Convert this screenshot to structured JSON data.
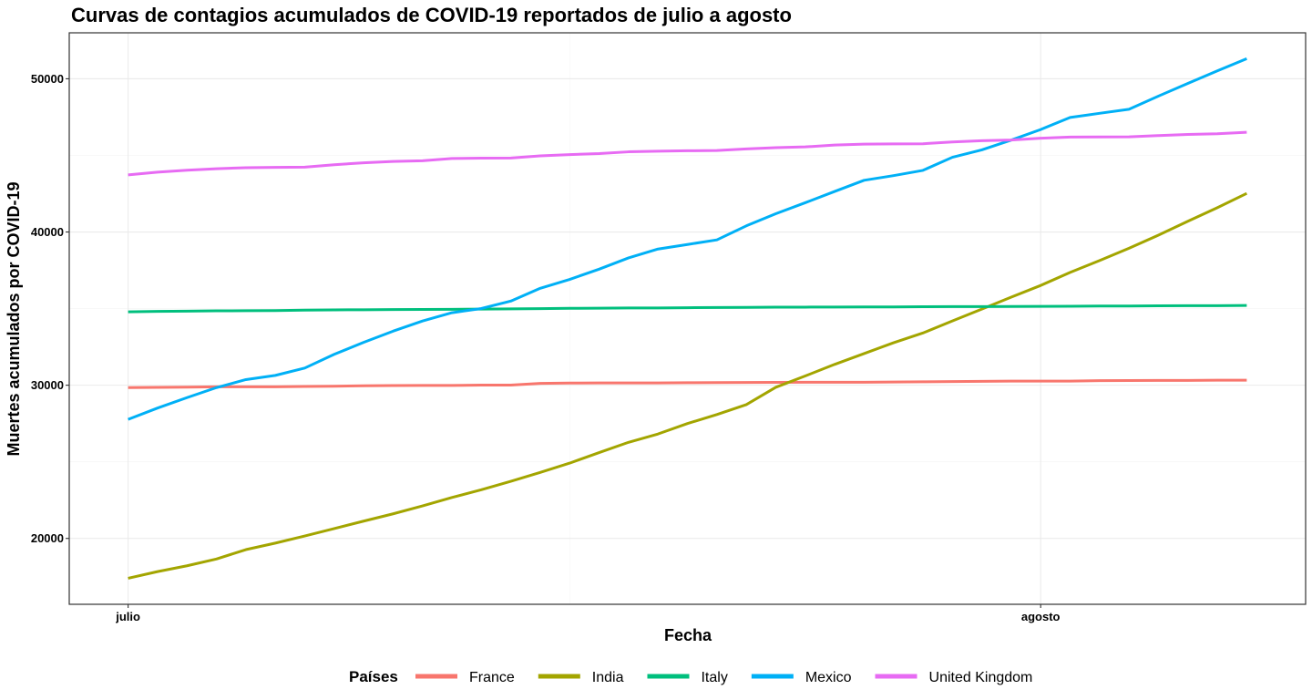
{
  "chart_data": {
    "type": "line",
    "title": "Curvas de contagios acumulados de COVID-19 reportados de julio a agosto",
    "xlabel": "Fecha",
    "ylabel": "Muertes acumulados por COVID-19",
    "x": [
      "2020-07-01",
      "2020-07-02",
      "2020-07-03",
      "2020-07-04",
      "2020-07-05",
      "2020-07-06",
      "2020-07-07",
      "2020-07-08",
      "2020-07-09",
      "2020-07-10",
      "2020-07-11",
      "2020-07-12",
      "2020-07-13",
      "2020-07-14",
      "2020-07-15",
      "2020-07-16",
      "2020-07-17",
      "2020-07-18",
      "2020-07-19",
      "2020-07-20",
      "2020-07-21",
      "2020-07-22",
      "2020-07-23",
      "2020-07-24",
      "2020-07-25",
      "2020-07-26",
      "2020-07-27",
      "2020-07-28",
      "2020-07-29",
      "2020-07-30",
      "2020-07-31",
      "2020-08-01",
      "2020-08-02",
      "2020-08-03",
      "2020-08-04",
      "2020-08-05",
      "2020-08-06",
      "2020-08-07",
      "2020-08-08"
    ],
    "x_ticks": [
      {
        "date": "2020-07-01",
        "label": "julio"
      },
      {
        "date": "2020-08-01",
        "label": "agosto"
      }
    ],
    "x_minor_ticks": [
      "2020-07-16"
    ],
    "xlim": [
      "2020-06-29",
      "2020-08-10"
    ],
    "ylim": [
      15700,
      53000
    ],
    "y_ticks": [
      20000,
      30000,
      40000,
      50000
    ],
    "y_minor_ticks": [
      25000,
      35000,
      45000
    ],
    "grid": true,
    "legend": {
      "title": "Países",
      "position": "bottom"
    },
    "series": [
      {
        "name": "France",
        "color": "#F8766D",
        "values": [
          29843,
          29860,
          29875,
          29893,
          29893,
          29896,
          29920,
          29933,
          29965,
          29979,
          29982,
          29982,
          30004,
          30007,
          30120,
          30138,
          30152,
          30152,
          30152,
          30165,
          30172,
          30177,
          30182,
          30192,
          30192,
          30192,
          30209,
          30223,
          30238,
          30254,
          30265,
          30265,
          30265,
          30294,
          30305,
          30312,
          30312,
          30324,
          30327
        ]
      },
      {
        "name": "India",
        "color": "#A3A500",
        "values": [
          17400,
          17834,
          18213,
          18655,
          19268,
          19693,
          20160,
          20642,
          21129,
          21604,
          22123,
          22674,
          23174,
          23727,
          24309,
          24915,
          25602,
          26273,
          26816,
          27497,
          28084,
          28732,
          29861,
          30601,
          31358,
          32063,
          32771,
          33408,
          34193,
          34968,
          35747,
          36511,
          37364,
          38135,
          38938,
          39795,
          40699,
          41585,
          42518
        ]
      },
      {
        "name": "Italy",
        "color": "#00BF7D",
        "values": [
          34788,
          34818,
          34833,
          34854,
          34861,
          34869,
          34899,
          34914,
          34926,
          34938,
          34945,
          34954,
          34967,
          34984,
          34997,
          35017,
          35028,
          35042,
          35045,
          35058,
          35073,
          35082,
          35092,
          35097,
          35102,
          35107,
          35112,
          35123,
          35129,
          35132,
          35141,
          35146,
          35154,
          35166,
          35171,
          35181,
          35187,
          35190,
          35203
        ]
      },
      {
        "name": "Mexico",
        "color": "#00B0F6",
        "values": [
          27769,
          28510,
          29189,
          29843,
          30366,
          30639,
          31119,
          32014,
          32796,
          33526,
          34191,
          34730,
          35006,
          35491,
          36327,
          36906,
          37574,
          38310,
          38888,
          39184,
          39485,
          40400,
          41190,
          41908,
          42645,
          43374,
          43680,
          44022,
          44876,
          45361,
          46000,
          46688,
          47472,
          47746,
          48012,
          48869,
          49698,
          50517,
          51311
        ]
      },
      {
        "name": "United Kingdom",
        "color": "#E76BF3",
        "values": [
          43730,
          43906,
          44031,
          44131,
          44198,
          44220,
          44236,
          44391,
          44517,
          44602,
          44650,
          44798,
          44819,
          44830,
          44968,
          45053,
          45119,
          45233,
          45273,
          45300,
          45318,
          45422,
          45501,
          45554,
          45677,
          45738,
          45752,
          45759,
          45878,
          45961,
          45999,
          46119,
          46193,
          46201,
          46210,
          46295,
          46364,
          46413,
          46511
        ]
      }
    ]
  }
}
